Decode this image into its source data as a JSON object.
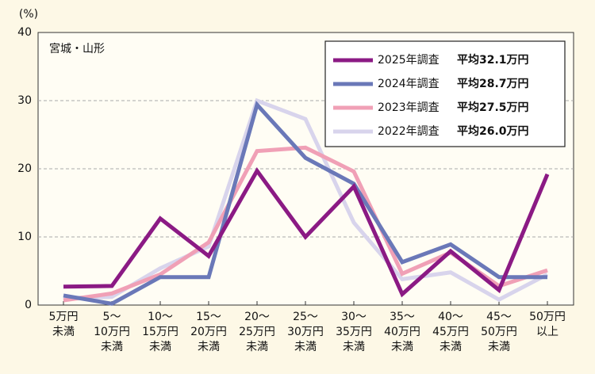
{
  "chart_data": {
    "type": "line",
    "subtitle": "宮城・山形",
    "y_unit": "(%)",
    "categories": [
      [
        "5万円",
        "未満"
      ],
      [
        "5〜",
        "10万円",
        "未満"
      ],
      [
        "10〜",
        "15万円",
        "未満"
      ],
      [
        "15〜",
        "20万円",
        "未満"
      ],
      [
        "20〜",
        "25万円",
        "未満"
      ],
      [
        "25〜",
        "30万円",
        "未満"
      ],
      [
        "30〜",
        "35万円",
        "未満"
      ],
      [
        "35〜",
        "40万円",
        "未満"
      ],
      [
        "40〜",
        "45万円",
        "未満"
      ],
      [
        "45〜",
        "50万円",
        "未満"
      ],
      [
        "50万円",
        "以上"
      ]
    ],
    "series": [
      {
        "name": "2025年調査",
        "average": "平均32.1万円",
        "color": "#8b1a84",
        "values": [
          2.7,
          2.8,
          12.7,
          7.2,
          19.7,
          10.0,
          17.4,
          1.6,
          7.9,
          2.2,
          19.2
        ]
      },
      {
        "name": "2024年調査",
        "average": "平均28.7万円",
        "color": "#6a78b8",
        "values": [
          1.4,
          0.2,
          4.1,
          4.1,
          29.4,
          21.6,
          17.8,
          6.3,
          8.9,
          4.1,
          4.1
        ]
      },
      {
        "name": "2023年調査",
        "average": "平均27.5万円",
        "color": "#f0a0b6",
        "values": [
          0.7,
          1.7,
          4.5,
          9.2,
          22.6,
          23.1,
          19.6,
          4.6,
          7.7,
          2.8,
          5.1
        ]
      },
      {
        "name": "2022年調査",
        "average": "平均26.0万円",
        "color": "#d8d4ec",
        "values": [
          1.0,
          1.2,
          5.4,
          8.6,
          30.0,
          27.3,
          12.1,
          3.8,
          4.8,
          0.8,
          4.5
        ]
      }
    ],
    "ylim": [
      0,
      40
    ],
    "yticks": [
      0,
      10,
      20,
      30,
      40
    ],
    "grid": true
  }
}
